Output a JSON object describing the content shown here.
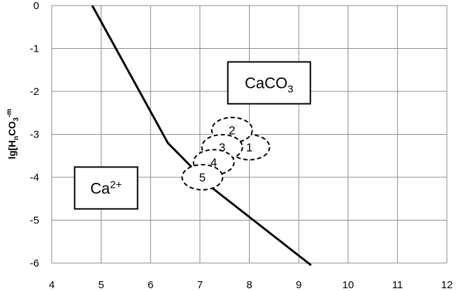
{
  "chart_data": {
    "type": "line",
    "title": "",
    "xlabel": "",
    "ylabel": {
      "main": "lg[H",
      "sub1": "n",
      "mid": "CO",
      "sub2": "3",
      "sup": "-m"
    },
    "xlim": [
      4,
      12
    ],
    "ylim": [
      -6,
      0
    ],
    "xticks": [
      "4",
      "5",
      "6",
      "7",
      "8",
      "9",
      "10",
      "11",
      "12"
    ],
    "yticks": [
      "0",
      "-1",
      "-2",
      "-3",
      "-4",
      "-5",
      "-6"
    ],
    "grid": true,
    "series": [
      {
        "x": [
          4.82,
          6.35,
          7.25,
          9.25
        ],
        "y": [
          0,
          -3.2,
          -4.25,
          -6.05
        ]
      }
    ],
    "regions": [
      {
        "label_main": "CaCO",
        "label_sub": "3",
        "x": 8.4,
        "y": -1.8
      },
      {
        "label_main": "Ca",
        "label_sup": "2+",
        "x": 5.1,
        "y": -4.25
      }
    ],
    "points": [
      {
        "label": "1",
        "x": 8.0,
        "y": -3.3
      },
      {
        "label": "2",
        "x": 7.65,
        "y": -2.9
      },
      {
        "label": "3",
        "x": 7.45,
        "y": -3.3
      },
      {
        "label": "4",
        "x": 7.28,
        "y": -3.65
      },
      {
        "label": "5",
        "x": 7.05,
        "y": -4.0
      }
    ]
  }
}
